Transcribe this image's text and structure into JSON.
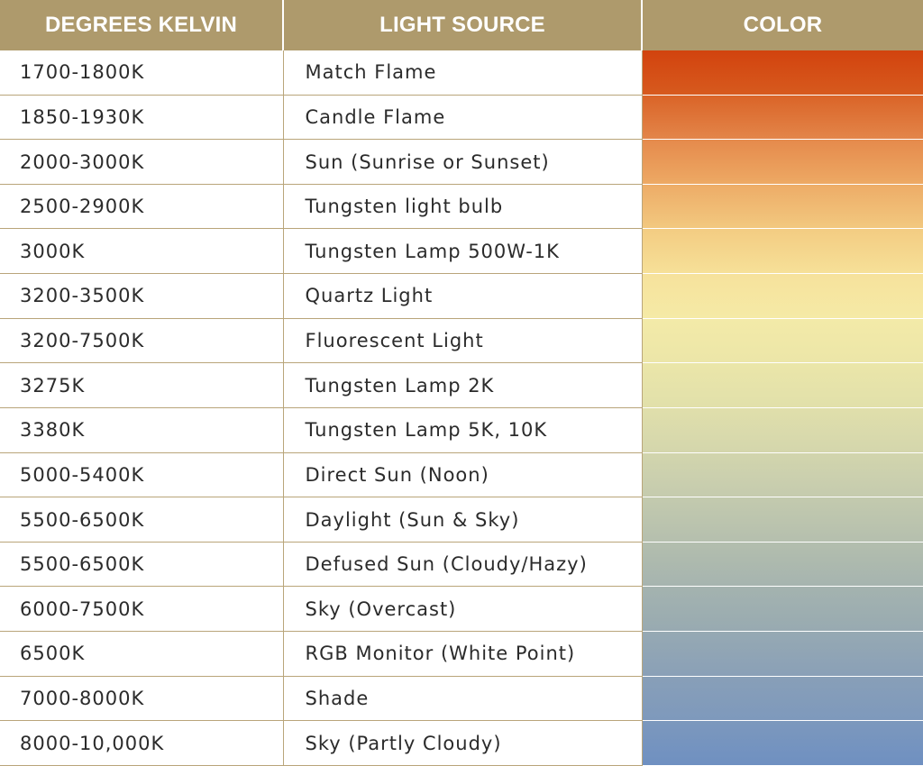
{
  "table": {
    "headers": {
      "kelvin": "DEGREES KELVIN",
      "source": "LIGHT SOURCE",
      "color": "COLOR"
    },
    "rows": [
      {
        "kelvin": "1700-1800K",
        "source": "Match Flame",
        "color_top": "#d2430e",
        "color_bottom": "#d75a1e"
      },
      {
        "kelvin": "1850-1930K",
        "source": "Candle Flame",
        "color_top": "#da6428",
        "color_bottom": "#e38549"
      },
      {
        "kelvin": "2000-3000K",
        "source": "Sun (Sunrise or Sunset)",
        "color_top": "#e58a4c",
        "color_bottom": "#eda964"
      },
      {
        "kelvin": "2500-2900K",
        "source": "Tungsten light bulb",
        "color_top": "#edac67",
        "color_bottom": "#f2c87f"
      },
      {
        "kelvin": "3000K",
        "source": "Tungsten Lamp 500W-1K",
        "color_top": "#f3cc82",
        "color_bottom": "#f6e098"
      },
      {
        "kelvin": "3200-3500K",
        "source": "Quartz Light",
        "color_top": "#f6e29c",
        "color_bottom": "#f5eaa6"
      },
      {
        "kelvin": "3200-7500K",
        "source": "Fluorescent Light",
        "color_top": "#f3eaa8",
        "color_bottom": "#ece6a8"
      },
      {
        "kelvin": "3275K",
        "source": "Tungsten Lamp 2K",
        "color_top": "#ebe6a9",
        "color_bottom": "#e1e0aa"
      },
      {
        "kelvin": "3380K",
        "source": "Tungsten Lamp 5K, 10K",
        "color_top": "#e0dfab",
        "color_bottom": "#d4d6ac"
      },
      {
        "kelvin": "5000-5400K",
        "source": "Direct Sun (Noon)",
        "color_top": "#d2d5ad",
        "color_bottom": "#c5cbae"
      },
      {
        "kelvin": "5500-6500K",
        "source": "Daylight (Sun & Sky)",
        "color_top": "#c3caae",
        "color_bottom": "#b5bfae"
      },
      {
        "kelvin": "5500-6500K",
        "source": "Defused Sun (Cloudy/Hazy)",
        "color_top": "#b3beae",
        "color_bottom": "#a6b4af"
      },
      {
        "kelvin": "6000-7500K",
        "source": "Sky (Overcast)",
        "color_top": "#a4b3af",
        "color_bottom": "#98aab1"
      },
      {
        "kelvin": "6500K",
        "source": "RGB Monitor (White Point)",
        "color_top": "#96a9b3",
        "color_bottom": "#8aa0b7"
      },
      {
        "kelvin": "7000-8000K",
        "source": "Shade",
        "color_top": "#889fb8",
        "color_bottom": "#7e99bc"
      },
      {
        "kelvin": "8000-10,000K",
        "source": "Sky (Partly Cloudy)",
        "color_top": "#7c98bd",
        "color_bottom": "#6f90c1"
      }
    ]
  },
  "colors": {
    "header_bg": "#ae9a6c",
    "header_text": "#ffffff",
    "grid_line": "#b9a57a",
    "body_text": "#2b2b2b"
  }
}
